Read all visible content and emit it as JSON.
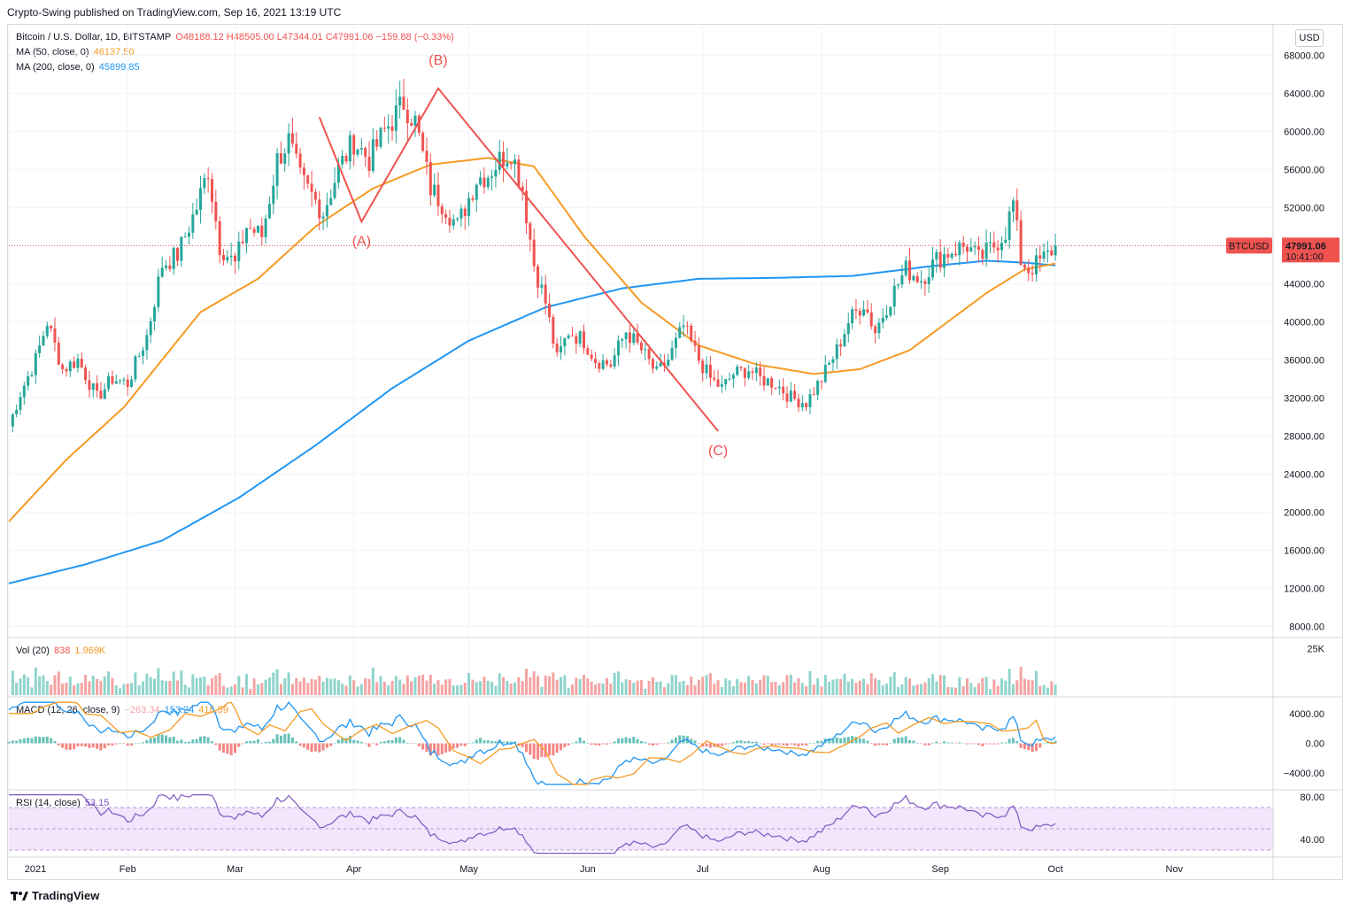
{
  "publisher_line": "Crypto-Swing published on TradingView.com, Sep 16, 2021 13:19 UTC",
  "legend": {
    "symbol": "Bitcoin / U.S. Dollar, 1D, BITSTAMP",
    "ohlc": "O48188.12 H48505.00 L47344.01 C47991.06 −159.88 (−0.33%)",
    "ma50_label": "MA (50, close, 0)",
    "ma50_value": "46137.50",
    "ma200_label": "MA (200, close, 0)",
    "ma200_value": "45899.85",
    "vol_label": "Vol (20)",
    "vol_value1": "838",
    "vol_value2": "1.969K",
    "macd_label": "MACD (12, 26, close, 9)",
    "macd_v1": "−263.34",
    "macd_v2": "153.24",
    "macd_v3": "416.59",
    "rsi_label": "RSI (14, close)",
    "rsi_value": "53.15"
  },
  "currency_button": "USD",
  "price_tag": {
    "symbol": "BTCUSD",
    "price": "47991.06",
    "countdown": "10:41:00"
  },
  "footer_brand": "TradingView",
  "colors": {
    "up": "#26a69a",
    "down": "#ef5350",
    "ma50": "#f59b23",
    "ma200": "#2196f3",
    "wave": "#ef5350",
    "rsi": "#7e57c2",
    "rsi_band": "#f3e5fb"
  },
  "chart_data": {
    "type": "candlestick",
    "title": "Bitcoin / U.S. Dollar, 1D, BITSTAMP",
    "y_axis": {
      "ylim": [
        7000,
        71000
      ],
      "ticks": [
        "68000.00",
        "64000.00",
        "60000.00",
        "56000.00",
        "52000.00",
        "48000.00",
        "44000.00",
        "40000.00",
        "36000.00",
        "32000.00",
        "28000.00",
        "24000.00",
        "20000.00",
        "16000.00",
        "12000.00",
        "8000.00"
      ]
    },
    "x_axis": {
      "labels": [
        "2021",
        "Feb",
        "Mar",
        "Apr",
        "May",
        "Jun",
        "Jul",
        "Aug",
        "Sep",
        "Oct",
        "Nov"
      ],
      "label_day_index": [
        0,
        31,
        59,
        90,
        120,
        151,
        181,
        212,
        243,
        273,
        304
      ],
      "day_range": [
        0,
        350
      ]
    },
    "price_anchors": [
      [
        0,
        29000
      ],
      [
        3,
        32500
      ],
      [
        7,
        36000
      ],
      [
        10,
        40000
      ],
      [
        14,
        35000
      ],
      [
        18,
        36000
      ],
      [
        23,
        32000
      ],
      [
        27,
        34000
      ],
      [
        31,
        33500
      ],
      [
        36,
        38500
      ],
      [
        40,
        46000
      ],
      [
        44,
        47000
      ],
      [
        49,
        52000
      ],
      [
        52,
        56000
      ],
      [
        55,
        48000
      ],
      [
        59,
        46000
      ],
      [
        62,
        50000
      ],
      [
        66,
        49000
      ],
      [
        70,
        57000
      ],
      [
        73,
        59000
      ],
      [
        76,
        55000
      ],
      [
        82,
        51500
      ],
      [
        86,
        56000
      ],
      [
        90,
        59000
      ],
      [
        94,
        57000
      ],
      [
        98,
        60000
      ],
      [
        103,
        63000
      ],
      [
        106,
        61000
      ],
      [
        110,
        54000
      ],
      [
        114,
        52000
      ],
      [
        117,
        50000
      ],
      [
        122,
        55000
      ],
      [
        125,
        55500
      ],
      [
        128,
        57000
      ],
      [
        131,
        58000
      ],
      [
        134,
        54000
      ],
      [
        137,
        46000
      ],
      [
        140,
        42000
      ],
      [
        143,
        36000
      ],
      [
        146,
        39000
      ],
      [
        150,
        38000
      ],
      [
        153,
        36000
      ],
      [
        157,
        35500
      ],
      [
        161,
        39000
      ],
      [
        165,
        37000
      ],
      [
        169,
        34500
      ],
      [
        172,
        36000
      ],
      [
        176,
        39500
      ],
      [
        180,
        36000
      ],
      [
        183,
        34000
      ],
      [
        186,
        33000
      ],
      [
        189,
        34500
      ],
      [
        193,
        35000
      ],
      [
        196,
        34000
      ],
      [
        200,
        33500
      ],
      [
        204,
        32000
      ],
      [
        208,
        31500
      ],
      [
        212,
        34000
      ],
      [
        216,
        37000
      ],
      [
        219,
        40000
      ],
      [
        223,
        42000
      ],
      [
        226,
        39000
      ],
      [
        230,
        42500
      ],
      [
        234,
        45500
      ],
      [
        238,
        44500
      ],
      [
        242,
        46500
      ],
      [
        246,
        47500
      ],
      [
        250,
        48000
      ],
      [
        253,
        46500
      ],
      [
        257,
        48000
      ],
      [
        260,
        49500
      ],
      [
        262,
        52500
      ],
      [
        264,
        46500
      ],
      [
        266,
        45500
      ],
      [
        268,
        46000
      ],
      [
        271,
        47000
      ],
      [
        273,
        48000
      ]
    ],
    "ma50_points": [
      [
        0,
        19000
      ],
      [
        15,
        25500
      ],
      [
        30,
        31000
      ],
      [
        50,
        41000
      ],
      [
        65,
        44500
      ],
      [
        80,
        50000
      ],
      [
        95,
        54000
      ],
      [
        110,
        56500
      ],
      [
        125,
        57200
      ],
      [
        137,
        56300
      ],
      [
        150,
        49000
      ],
      [
        165,
        42000
      ],
      [
        180,
        37500
      ],
      [
        195,
        35500
      ],
      [
        210,
        34500
      ],
      [
        222,
        35000
      ],
      [
        235,
        37000
      ],
      [
        245,
        40000
      ],
      [
        255,
        43000
      ],
      [
        265,
        45500
      ],
      [
        273,
        46100
      ]
    ],
    "ma200_points": [
      [
        0,
        12500
      ],
      [
        20,
        14500
      ],
      [
        40,
        17000
      ],
      [
        60,
        21500
      ],
      [
        80,
        27000
      ],
      [
        100,
        33000
      ],
      [
        120,
        38000
      ],
      [
        140,
        41500
      ],
      [
        160,
        43500
      ],
      [
        180,
        44500
      ],
      [
        200,
        44600
      ],
      [
        220,
        44800
      ],
      [
        240,
        45800
      ],
      [
        255,
        46400
      ],
      [
        265,
        46200
      ],
      [
        273,
        45900
      ]
    ],
    "wave_points": [
      [
        81,
        61500
      ],
      [
        92,
        50500
      ],
      [
        112,
        64500
      ],
      [
        185,
        28500
      ]
    ],
    "wave_labels": [
      {
        "text": "(A)",
        "day": 92,
        "price": 48000
      },
      {
        "text": "(B)",
        "day": 112,
        "price": 67000
      },
      {
        "text": "(C)",
        "day": 185,
        "price": 26000
      }
    ],
    "volume": {
      "ylim": [
        0,
        30000
      ],
      "tick": "25K"
    },
    "macd": {
      "ylim": [
        -6000,
        6000
      ],
      "ticks": [
        "4000.00",
        "0.00",
        "−4000.00"
      ]
    },
    "rsi": {
      "ylim": [
        25,
        85
      ],
      "band": [
        30,
        70
      ],
      "ticks": [
        "80.00",
        "40.00"
      ]
    }
  }
}
